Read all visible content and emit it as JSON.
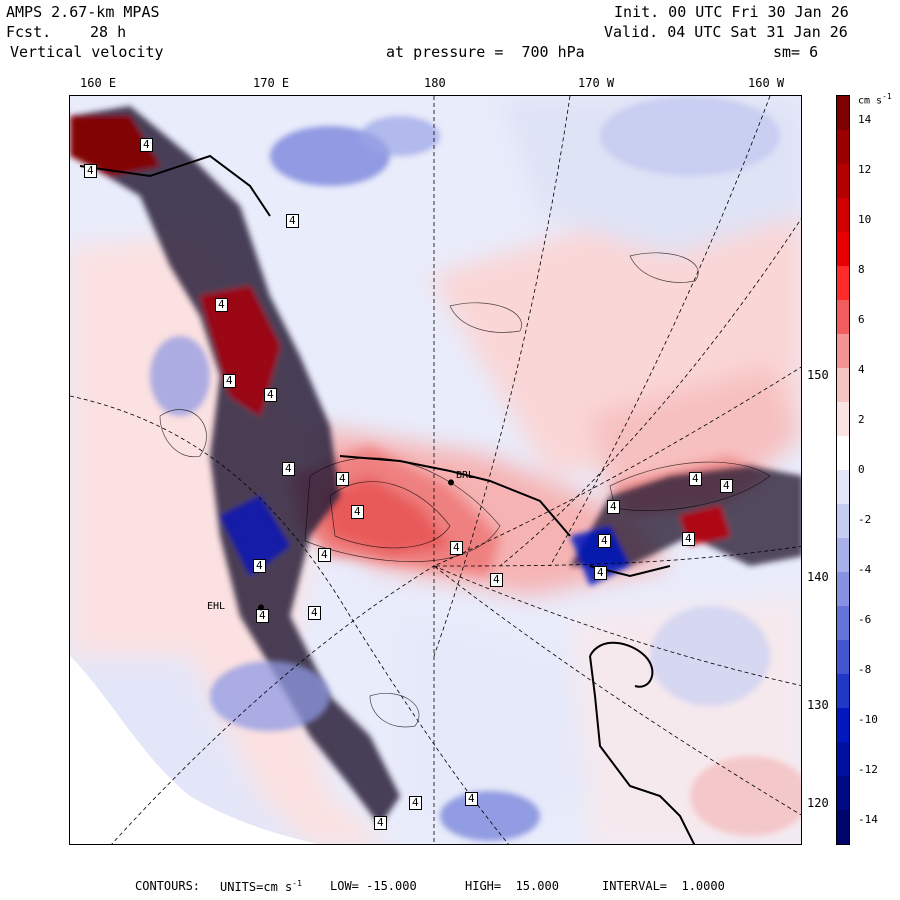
{
  "header": {
    "model": "AMPS 2.67-km MPAS",
    "init": "Init. 00 UTC Fri 30 Jan 26",
    "forecast_label": "Fcst.",
    "forecast_value": "28 h",
    "valid": "Valid. 04 UTC Sat 31 Jan 26",
    "variable": "Vertical velocity",
    "pressure": "at pressure =  700 hPa",
    "smoothing": "sm= 6"
  },
  "longitude_labels": [
    "160 E",
    "170 E",
    "180",
    "170 W",
    "160 W"
  ],
  "latitude_labels": [
    "150 W",
    "140 W",
    "130 W",
    "120 W"
  ],
  "colorbar": {
    "unit_label": "cm s",
    "unit_exponent": "-1",
    "ticks": [
      "14",
      "12",
      "10",
      "8",
      "6",
      "4",
      "2",
      "0",
      "-2",
      "-4",
      "-6",
      "-8",
      "-10",
      "-12",
      "-14"
    ],
    "colors": [
      "#7f0000",
      "#9a0000",
      "#b50000",
      "#d00000",
      "#e80000",
      "#ff2a2a",
      "#f15c5c",
      "#f39494",
      "#f7c4c4",
      "#fbe3e3",
      "#ffffff",
      "#e3e6f8",
      "#c6ccf2",
      "#a7b0eb",
      "#8793e2",
      "#6574d9",
      "#4355cf",
      "#2038c6",
      "#0018be",
      "#0010a0",
      "#000a83",
      "#00056b"
    ],
    "min": -15,
    "max": 15
  },
  "map_labels": {
    "contour_value": "4",
    "station_1": "BRL",
    "station_2": "EHL"
  },
  "footer": {
    "contours": "CONTOURS:",
    "units_label": "UNITS=cm s",
    "units_exponent": "-1",
    "low": "LOW= -15.000",
    "high": "HIGH=  15.000",
    "interval": "INTERVAL=  1.0000"
  }
}
